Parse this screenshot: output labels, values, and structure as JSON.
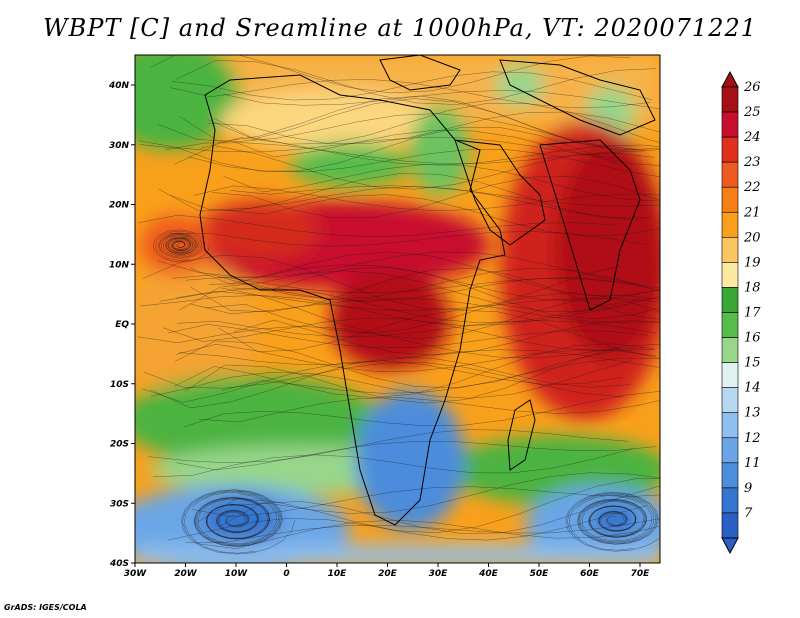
{
  "title": "WBPT [C] and Sreamline at 1000hPa, VT: 2020071221",
  "footer": "GrADS: IGES/COLA",
  "map": {
    "lat_ticks": [
      "40N",
      "30N",
      "20N",
      "10N",
      "EQ",
      "10S",
      "20S",
      "30S",
      "40S"
    ],
    "lon_ticks": [
      "30W",
      "20W",
      "10W",
      "0",
      "10E",
      "20E",
      "30E",
      "40E",
      "50E",
      "60E",
      "70E"
    ]
  },
  "colorbar": {
    "labels": [
      "26",
      "25",
      "24",
      "23",
      "22",
      "21",
      "20",
      "19",
      "18",
      "17",
      "16",
      "15",
      "14",
      "13",
      "12",
      "11",
      "9",
      "7"
    ],
    "colors": [
      "#a50f15",
      "#c8102e",
      "#e0301e",
      "#ef5a1e",
      "#f57f17",
      "#f9a01b",
      "#fcc55f",
      "#fde9a0",
      "#3aa635",
      "#56bd4c",
      "#98d68b",
      "#dff2f0",
      "#b6d7f2",
      "#8fbfee",
      "#6aa6e6",
      "#4c8ddc",
      "#3574cf",
      "#2a5fc4"
    ]
  },
  "colors": {
    "land_outline": "#000000",
    "streamline": "#1a1a1a"
  }
}
